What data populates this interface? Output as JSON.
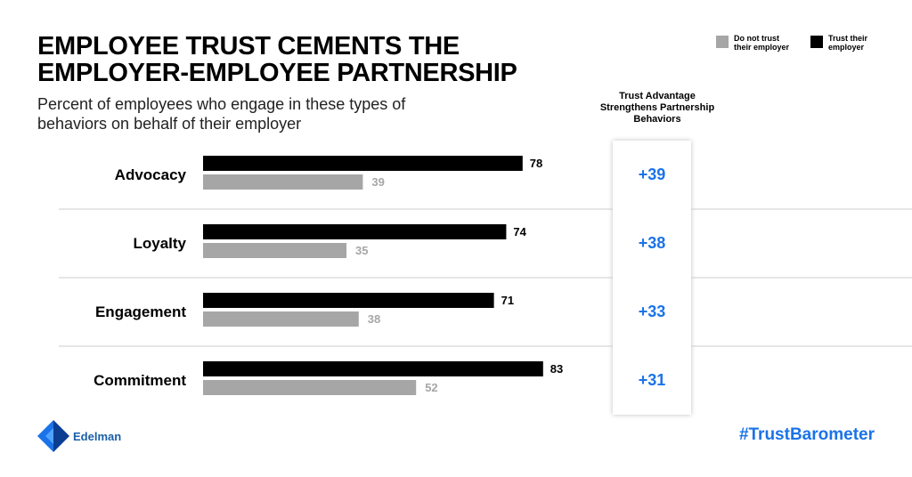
{
  "title": "EMPLOYEE TRUST CEMENTS THE EMPLOYER-EMPLOYEE PARTNERSHIP",
  "subtitle": "Percent of employees who engage in these types of behaviors on behalf of their employer",
  "legend": {
    "distrust_label": "Do not trust\ntheir employer",
    "trust_label": "Trust their\nemployer"
  },
  "advantage_header": "Trust Advantage\nStrengthens Partnership\nBehaviors",
  "brand": {
    "name": "Edelman"
  },
  "hashtag": "#TrustBarometer",
  "colors": {
    "trust": "#000000",
    "distrust": "#a6a6a6",
    "advantage": "#1a73e8",
    "divider": "#cccccc"
  },
  "chart_data": {
    "type": "bar",
    "orientation": "horizontal",
    "categories": [
      "Advocacy",
      "Loyalty",
      "Engagement",
      "Commitment"
    ],
    "series": [
      {
        "name": "Trust their employer",
        "values": [
          78,
          74,
          71,
          83
        ]
      },
      {
        "name": "Do not trust their employer",
        "values": [
          39,
          35,
          38,
          52
        ]
      }
    ],
    "trust_advantage": [
      "+39",
      "+38",
      "+33",
      "+31"
    ],
    "xlim": [
      0,
      100
    ],
    "title": "EMPLOYEE TRUST CEMENTS THE EMPLOYER-EMPLOYEE PARTNERSHIP"
  }
}
